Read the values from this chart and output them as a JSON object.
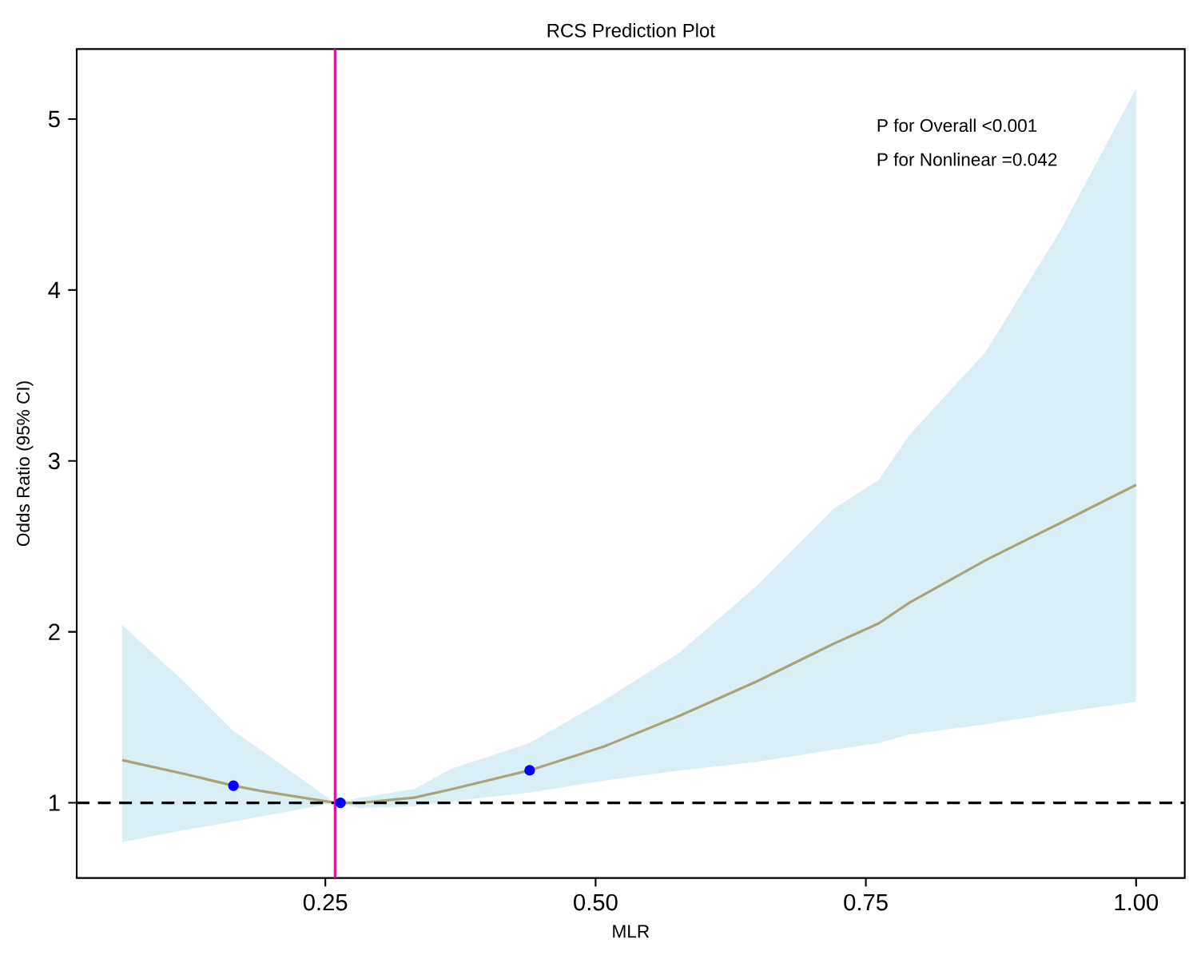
{
  "chart_data": {
    "type": "line",
    "title": "RCS Prediction Plot",
    "xlabel": "MLR",
    "ylabel": "Odds Ratio (95% CI)",
    "annotations": [
      "P for Overall <0.001",
      "P for Nonlinear =0.042"
    ],
    "xlim": [
      0.02,
      1.045
    ],
    "ylim": [
      0.56,
      5.41
    ],
    "xticks": [
      {
        "value": 0.25,
        "label": "0.25"
      },
      {
        "value": 0.5,
        "label": "0.50"
      },
      {
        "value": 0.75,
        "label": "0.75"
      },
      {
        "value": 1.0,
        "label": "1.00"
      }
    ],
    "yticks": [
      1,
      2,
      3,
      4,
      5
    ],
    "grid": false,
    "line_style": "solid",
    "series": [
      {
        "type": "line",
        "color": "#aaa27a",
        "marker": "none",
        "x": [
          0.062,
          0.119,
          0.165,
          0.19,
          0.259,
          0.282,
          0.332,
          0.367,
          0.439,
          0.508,
          0.578,
          0.649,
          0.72,
          0.762,
          0.79,
          0.861,
          0.931,
          1.0
        ],
        "values": [
          1.25,
          1.17,
          1.1,
          1.07,
          1.0,
          1.0,
          1.03,
          1.08,
          1.19,
          1.33,
          1.51,
          1.71,
          1.93,
          2.05,
          2.17,
          2.42,
          2.64,
          2.86
        ],
        "lower": [
          0.77,
          0.84,
          0.89,
          0.92,
          1.0,
          0.97,
          0.98,
          1.01,
          1.06,
          1.13,
          1.19,
          1.24,
          1.31,
          1.35,
          1.4,
          1.46,
          1.53,
          1.59
        ],
        "upper": [
          2.04,
          1.71,
          1.42,
          1.31,
          1.0,
          1.03,
          1.08,
          1.2,
          1.35,
          1.6,
          1.88,
          2.27,
          2.72,
          2.89,
          3.15,
          3.64,
          4.36,
          5.18
        ]
      },
      {
        "type": "scatter",
        "color": "#0000ff",
        "marker": "circle",
        "x": [
          0.165,
          0.264,
          0.439
        ],
        "values": [
          1.1,
          1.0,
          1.19
        ]
      }
    ],
    "ref_lines": [
      {
        "axis": "y",
        "value": 1,
        "color": "#000000",
        "line_style": "dashed"
      },
      {
        "axis": "x",
        "value": 0.259,
        "color": "#e0119d",
        "line_style": "solid"
      }
    ]
  }
}
